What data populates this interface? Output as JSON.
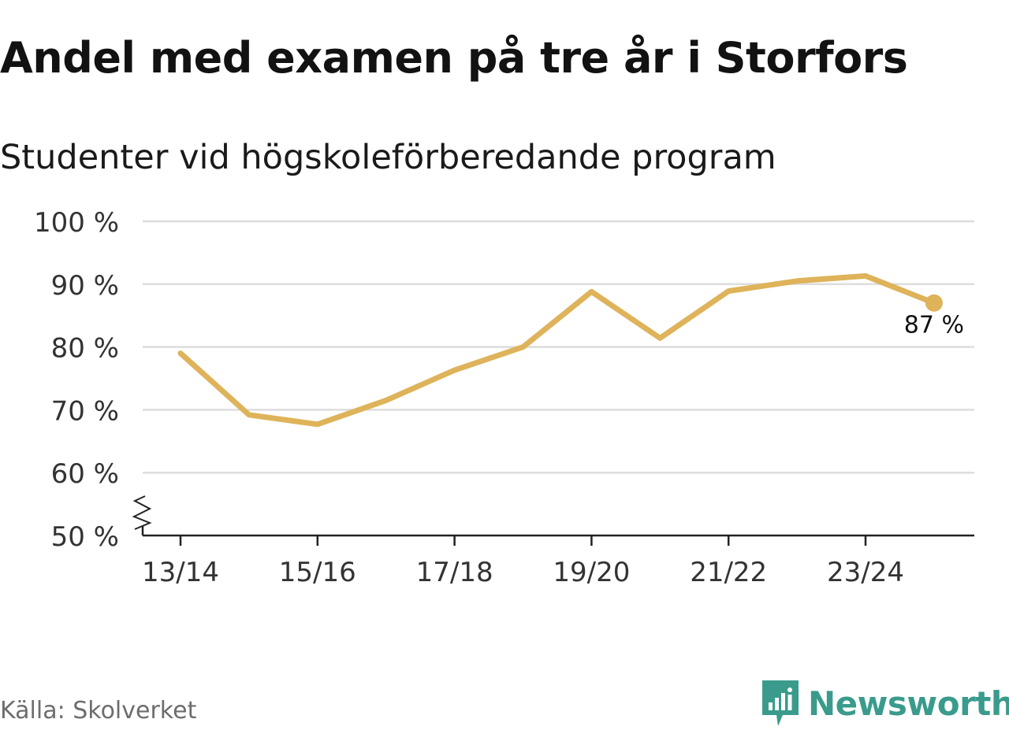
{
  "title": "Andel med examen på tre år i Storfors",
  "subtitle": "Studenter vid högskoleförberedande program",
  "source": "Källa: Skolverket",
  "brand": "Newsworthy",
  "colors": {
    "line": "#deb35a",
    "grid": "#dddddd",
    "axis": "#222222",
    "brand": "#3a9b8c"
  },
  "chart_data": {
    "type": "line",
    "title": "Andel med examen på tre år i Storfors",
    "subtitle": "Studenter vid högskoleförberedande program",
    "xlabel": "",
    "ylabel": "",
    "x": [
      "13/14",
      "14/15",
      "15/16",
      "16/17",
      "17/18",
      "18/19",
      "19/20",
      "20/21",
      "21/22",
      "22/23",
      "23/24",
      "24/25"
    ],
    "x_tick_labels": [
      "13/14",
      "15/16",
      "17/18",
      "19/20",
      "21/22",
      "23/24"
    ],
    "y_tick_labels": [
      "50 %",
      "60 %",
      "70 %",
      "80 %",
      "90 %",
      "100 %"
    ],
    "ylim": [
      50,
      100
    ],
    "y_axis_break": true,
    "grid": true,
    "series": [
      {
        "name": "Andel med examen",
        "values": [
          79,
          69.2,
          67.7,
          71.5,
          76.3,
          80,
          88.8,
          81.4,
          88.9,
          90.5,
          91.3,
          87
        ],
        "end_label": "87 %"
      }
    ]
  }
}
